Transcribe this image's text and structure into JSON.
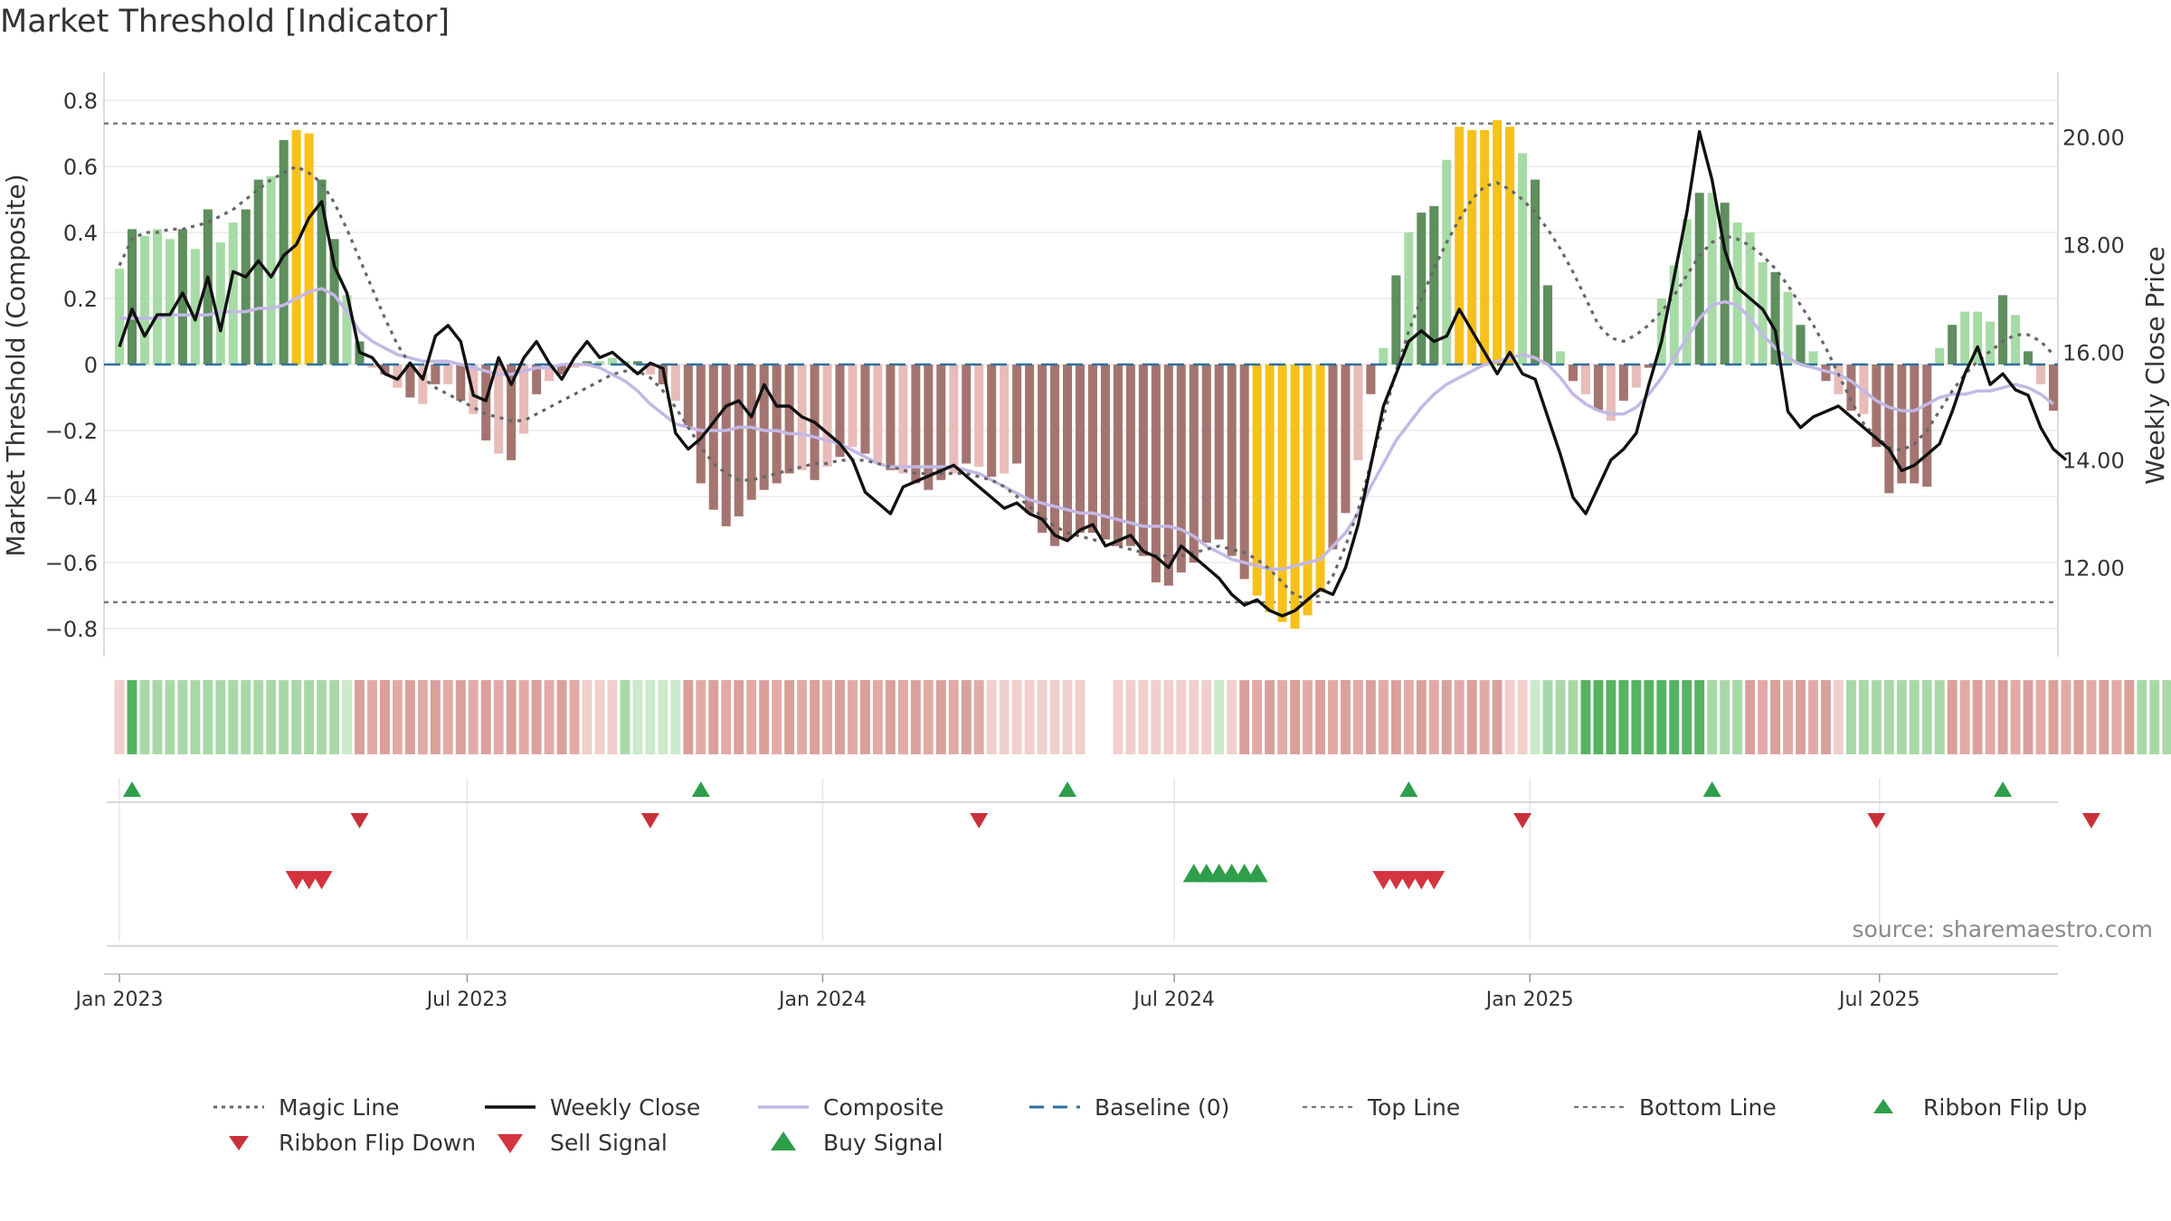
{
  "title": "Market Threshold [Indicator]",
  "source": "source: sharemaestro.com",
  "colors": {
    "positive_light": "#a7dba6",
    "positive_dark": "#5e8f5d",
    "negative_light": "#e8bcb8",
    "negative_dark": "#a47570",
    "extreme": "#f7c11b",
    "magic_line": "#666666",
    "weekly_close": "#111111",
    "composite": "#c3b8e6",
    "baseline": "#2e6f9e",
    "threshold_lines": "#777777",
    "buy": "#2e9e4a",
    "sell": "#d4343f",
    "ribbon_up": "#2e9e4a",
    "ribbon_down": "#c9313a"
  },
  "chart_data": {
    "type": "bar",
    "left_axis": {
      "label": "Market Threshold (Composite)",
      "ylim": [
        -0.88,
        0.9
      ],
      "ticks": [
        "0.8",
        "0.6",
        "0.4",
        "0.2",
        "0",
        "−0.2",
        "−0.4",
        "−0.6",
        "−0.8"
      ],
      "tick_values": [
        0.8,
        0.6,
        0.4,
        0.2,
        0,
        -0.2,
        -0.4,
        -0.6,
        -0.8
      ]
    },
    "right_axis": {
      "label": "Weekly Close Price",
      "ylim": [
        10.8,
        21.5
      ],
      "ticks": [
        "20.00",
        "18.00",
        "16.00",
        "14.00",
        "12.00"
      ],
      "tick_values": [
        20,
        18,
        16,
        14,
        12
      ]
    },
    "x_axis": {
      "start": "2023-01-02",
      "end": "2025-09-29",
      "ticks": [
        {
          "label": "Jan 2023",
          "date": "2023-01-02"
        },
        {
          "label": "Jul 2023",
          "date": "2023-07-01"
        },
        {
          "label": "Jan 2024",
          "date": "2024-01-01"
        },
        {
          "label": "Jul 2024",
          "date": "2024-07-01"
        },
        {
          "label": "Jan 2025",
          "date": "2025-01-01"
        },
        {
          "label": "Jul 2025",
          "date": "2025-07-01"
        }
      ]
    },
    "top_line": 0.73,
    "bottom_line": -0.72,
    "composite_histogram": [
      0.29,
      0.41,
      0.39,
      0.41,
      0.38,
      0.41,
      0.35,
      0.47,
      0.37,
      0.43,
      0.47,
      0.56,
      0.57,
      0.68,
      0.71,
      0.7,
      0.56,
      0.38,
      0.21,
      0.07,
      -0.01,
      -0.03,
      -0.07,
      -0.1,
      -0.12,
      -0.06,
      -0.06,
      -0.11,
      -0.15,
      -0.23,
      -0.27,
      -0.29,
      -0.21,
      -0.09,
      -0.05,
      -0.03,
      -0.01,
      0.01,
      0.01,
      0.02,
      0.01,
      0.01,
      -0.03,
      -0.06,
      -0.11,
      -0.19,
      -0.36,
      -0.44,
      -0.49,
      -0.46,
      -0.41,
      -0.38,
      -0.36,
      -0.33,
      -0.32,
      -0.35,
      -0.31,
      -0.28,
      -0.25,
      -0.27,
      -0.3,
      -0.32,
      -0.33,
      -0.36,
      -0.38,
      -0.35,
      -0.33,
      -0.3,
      -0.31,
      -0.34,
      -0.33,
      -0.3,
      -0.45,
      -0.51,
      -0.55,
      -0.53,
      -0.51,
      -0.51,
      -0.53,
      -0.55,
      -0.55,
      -0.58,
      -0.66,
      -0.67,
      -0.63,
      -0.6,
      -0.54,
      -0.53,
      -0.58,
      -0.65,
      -0.7,
      -0.75,
      -0.78,
      -0.8,
      -0.76,
      -0.69,
      -0.56,
      -0.45,
      -0.29,
      -0.09,
      0.05,
      0.27,
      0.4,
      0.46,
      0.48,
      0.62,
      0.72,
      0.71,
      0.71,
      0.74,
      0.72,
      0.64,
      0.56,
      0.24,
      0.04,
      -0.05,
      -0.09,
      -0.14,
      -0.17,
      -0.11,
      -0.07,
      -0.01,
      0.2,
      0.3,
      0.44,
      0.52,
      0.52,
      0.49,
      0.43,
      0.4,
      0.31,
      0.28,
      0.22,
      0.12,
      0.04,
      -0.05,
      -0.09,
      -0.14,
      -0.15,
      -0.25,
      -0.39,
      -0.36,
      -0.36,
      -0.37,
      0.05,
      0.12,
      0.16,
      0.16,
      0.13,
      0.21,
      0.15,
      0.04,
      -0.06,
      -0.14
    ],
    "weekly_close": [
      16.1,
      16.8,
      16.3,
      16.7,
      16.7,
      17.1,
      16.6,
      17.4,
      16.4,
      17.5,
      17.4,
      17.7,
      17.4,
      17.8,
      18.0,
      18.5,
      18.8,
      17.6,
      17.1,
      16.0,
      15.9,
      15.6,
      15.5,
      15.8,
      15.5,
      16.3,
      16.5,
      16.2,
      15.2,
      15.1,
      15.9,
      15.4,
      15.9,
      16.2,
      15.8,
      15.5,
      15.9,
      16.2,
      15.9,
      16.0,
      15.8,
      15.6,
      15.8,
      15.7,
      14.5,
      14.2,
      14.4,
      14.7,
      15.0,
      15.1,
      14.8,
      15.4,
      15.0,
      15.0,
      14.8,
      14.7,
      14.5,
      14.3,
      14.0,
      13.4,
      13.2,
      13.0,
      13.5,
      13.6,
      13.7,
      13.8,
      13.9,
      13.7,
      13.5,
      13.3,
      13.1,
      13.2,
      13.0,
      12.9,
      12.6,
      12.5,
      12.7,
      12.8,
      12.4,
      12.5,
      12.6,
      12.3,
      12.2,
      12.0,
      12.4,
      12.2,
      12.0,
      11.8,
      11.5,
      11.3,
      11.4,
      11.2,
      11.1,
      11.2,
      11.4,
      11.6,
      11.5,
      12.0,
      12.8,
      13.9,
      15.0,
      15.6,
      16.2,
      16.4,
      16.2,
      16.3,
      16.8,
      16.4,
      16.0,
      15.6,
      16.0,
      15.6,
      15.5,
      14.8,
      14.1,
      13.3,
      13.0,
      13.5,
      14.0,
      14.2,
      14.5,
      15.4,
      16.2,
      17.4,
      18.6,
      20.1,
      19.2,
      17.9,
      17.2,
      17.0,
      16.8,
      16.4,
      14.9,
      14.6,
      14.8,
      14.9,
      15.0,
      14.8,
      14.6,
      14.4,
      14.2,
      13.8,
      13.9,
      14.1,
      14.3,
      14.9,
      15.6,
      16.1,
      15.4,
      15.6,
      15.3,
      15.2,
      14.6,
      14.2,
      14.0
    ],
    "magic_line_composite": [
      0.3,
      0.38,
      0.4,
      0.4,
      0.41,
      0.41,
      0.42,
      0.43,
      0.45,
      0.47,
      0.5,
      0.53,
      0.56,
      0.58,
      0.6,
      0.58,
      0.55,
      0.49,
      0.41,
      0.32,
      0.23,
      0.14,
      0.06,
      0.0,
      -0.04,
      -0.07,
      -0.09,
      -0.11,
      -0.13,
      -0.15,
      -0.16,
      -0.17,
      -0.17,
      -0.15,
      -0.13,
      -0.11,
      -0.09,
      -0.07,
      -0.05,
      -0.03,
      -0.02,
      -0.02,
      -0.04,
      -0.08,
      -0.13,
      -0.19,
      -0.25,
      -0.3,
      -0.33,
      -0.35,
      -0.35,
      -0.34,
      -0.33,
      -0.32,
      -0.31,
      -0.3,
      -0.3,
      -0.29,
      -0.29,
      -0.29,
      -0.3,
      -0.31,
      -0.32,
      -0.33,
      -0.33,
      -0.33,
      -0.33,
      -0.33,
      -0.34,
      -0.35,
      -0.37,
      -0.4,
      -0.43,
      -0.46,
      -0.49,
      -0.51,
      -0.52,
      -0.53,
      -0.54,
      -0.55,
      -0.56,
      -0.57,
      -0.58,
      -0.58,
      -0.58,
      -0.57,
      -0.56,
      -0.55,
      -0.56,
      -0.57,
      -0.59,
      -0.62,
      -0.66,
      -0.7,
      -0.71,
      -0.7,
      -0.64,
      -0.55,
      -0.44,
      -0.3,
      -0.16,
      -0.02,
      0.1,
      0.2,
      0.29,
      0.37,
      0.44,
      0.5,
      0.54,
      0.55,
      0.53,
      0.5,
      0.46,
      0.41,
      0.35,
      0.28,
      0.2,
      0.12,
      0.08,
      0.07,
      0.09,
      0.12,
      0.16,
      0.21,
      0.27,
      0.33,
      0.37,
      0.39,
      0.38,
      0.36,
      0.33,
      0.29,
      0.24,
      0.18,
      0.12,
      0.05,
      -0.03,
      -0.11,
      -0.18,
      -0.22,
      -0.25,
      -0.26,
      -0.24,
      -0.2,
      -0.14,
      -0.08,
      -0.03,
      0.01,
      0.04,
      0.07,
      0.09,
      0.09,
      0.07,
      0.03
    ],
    "composite_smooth": [
      0.14,
      0.14,
      0.14,
      0.14,
      0.15,
      0.15,
      0.15,
      0.15,
      0.16,
      0.16,
      0.16,
      0.17,
      0.17,
      0.18,
      0.2,
      0.22,
      0.23,
      0.21,
      0.16,
      0.1,
      0.07,
      0.05,
      0.03,
      0.02,
      0.01,
      0.01,
      0.01,
      0.0,
      -0.01,
      -0.02,
      -0.03,
      -0.03,
      -0.02,
      -0.01,
      -0.01,
      0.0,
      0.0,
      0.0,
      -0.01,
      -0.03,
      -0.05,
      -0.08,
      -0.12,
      -0.15,
      -0.18,
      -0.19,
      -0.2,
      -0.2,
      -0.2,
      -0.19,
      -0.19,
      -0.2,
      -0.2,
      -0.21,
      -0.21,
      -0.22,
      -0.23,
      -0.24,
      -0.26,
      -0.28,
      -0.3,
      -0.31,
      -0.31,
      -0.31,
      -0.31,
      -0.31,
      -0.31,
      -0.32,
      -0.33,
      -0.35,
      -0.37,
      -0.39,
      -0.41,
      -0.42,
      -0.43,
      -0.44,
      -0.45,
      -0.45,
      -0.46,
      -0.47,
      -0.48,
      -0.49,
      -0.49,
      -0.49,
      -0.5,
      -0.52,
      -0.55,
      -0.57,
      -0.59,
      -0.6,
      -0.61,
      -0.62,
      -0.62,
      -0.61,
      -0.6,
      -0.59,
      -0.55,
      -0.51,
      -0.45,
      -0.37,
      -0.3,
      -0.23,
      -0.18,
      -0.13,
      -0.09,
      -0.06,
      -0.04,
      -0.02,
      0.0,
      0.01,
      0.02,
      0.03,
      0.02,
      0.0,
      -0.04,
      -0.09,
      -0.12,
      -0.14,
      -0.15,
      -0.15,
      -0.13,
      -0.09,
      -0.04,
      0.02,
      0.08,
      0.14,
      0.18,
      0.19,
      0.18,
      0.14,
      0.09,
      0.05,
      0.02,
      0.0,
      -0.01,
      -0.02,
      -0.03,
      -0.05,
      -0.08,
      -0.11,
      -0.13,
      -0.14,
      -0.14,
      -0.12,
      -0.1,
      -0.09,
      -0.09,
      -0.08,
      -0.08,
      -0.07,
      -0.06,
      -0.07,
      -0.09,
      -0.12
    ],
    "regime_strip": [
      "nl",
      "pd",
      "pm",
      "pm",
      "pm",
      "pm",
      "pm",
      "pm",
      "pm",
      "pm",
      "pm",
      "pm",
      "pm",
      "pm",
      "pm",
      "pm",
      "pm",
      "pm",
      "pl",
      "nm",
      "nm",
      "nm",
      "nm",
      "nm",
      "nm",
      "nm",
      "nm",
      "nm",
      "nm",
      "nm",
      "nm",
      "nm",
      "nm",
      "nm",
      "nm",
      "nm",
      "nm",
      "nl",
      "nl",
      "nl",
      "pm",
      "pl",
      "pl",
      "pl",
      "pl",
      "nm",
      "nm",
      "nm",
      "nm",
      "nm",
      "nm",
      "nm",
      "nm",
      "nm",
      "nm",
      "nm",
      "nm",
      "nm",
      "nm",
      "nm",
      "nm",
      "nm",
      "nm",
      "nm",
      "nm",
      "nm",
      "nm",
      "nm",
      "nm",
      "nl",
      "nl",
      "nl",
      "nl",
      "nl",
      "nl",
      "nl",
      "nl",
      "",
      "",
      "nl",
      "nl",
      "nl",
      "nl",
      "nl",
      "nl",
      "nl",
      "nl",
      "pl",
      "nl",
      "nm",
      "nm",
      "nm",
      "nm",
      "nm",
      "nm",
      "nm",
      "nm",
      "nm",
      "nm",
      "nm",
      "nm",
      "nm",
      "nm",
      "nm",
      "nm",
      "nm",
      "nm",
      "nm",
      "nm",
      "nm",
      "nl",
      "nl",
      "pl",
      "pm",
      "pm",
      "pm",
      "pd",
      "pd",
      "pd",
      "pd",
      "pd",
      "pd",
      "pd",
      "pd",
      "pd",
      "pd",
      "pm",
      "pm",
      "pm",
      "nm",
      "nm",
      "nm",
      "nm",
      "nm",
      "nm",
      "nm",
      "nl",
      "pm",
      "pm",
      "pm",
      "pm",
      "pm",
      "pm",
      "pm",
      "pm",
      "nm",
      "nm",
      "nm",
      "nm",
      "nm",
      "nm",
      "nm",
      "nm",
      "nm",
      "nm",
      "nm",
      "nm",
      "nm",
      "nm",
      "nm",
      "pm",
      "pm",
      "pm",
      "pm",
      "pm",
      "pm",
      "pm",
      "pm",
      "nl",
      "nl"
    ],
    "ribbon_flip_up": [
      1,
      46,
      75,
      102,
      126,
      149
    ],
    "ribbon_flip_down": [
      19,
      42,
      68,
      111,
      139,
      156
    ],
    "buy_signal": [
      85,
      86,
      87,
      88,
      89,
      90
    ],
    "sell_signal": [
      14,
      15,
      16,
      100,
      101,
      102,
      103,
      104
    ],
    "legend": [
      {
        "label": "Magic Line",
        "style": "dotted-line",
        "color": "#666666"
      },
      {
        "label": "Weekly Close",
        "style": "solid-line",
        "color": "#111111"
      },
      {
        "label": "Composite",
        "style": "solid-line",
        "color": "#c3b8e6"
      },
      {
        "label": "Baseline (0)",
        "style": "dashed-line",
        "color": "#2e6f9e"
      },
      {
        "label": "Top Line",
        "style": "fine-dash-line",
        "color": "#777777"
      },
      {
        "label": "Bottom Line",
        "style": "fine-dash-line",
        "color": "#777777"
      },
      {
        "label": "Ribbon Flip Up",
        "style": "triangle-up",
        "color": "#2e9e4a"
      },
      {
        "label": "Ribbon Flip Down",
        "style": "triangle-down",
        "color": "#c9313a"
      },
      {
        "label": "Sell Signal",
        "style": "triangle-down-large",
        "color": "#d4343f"
      },
      {
        "label": "Buy Signal",
        "style": "triangle-up-large",
        "color": "#2e9e4a"
      }
    ]
  }
}
